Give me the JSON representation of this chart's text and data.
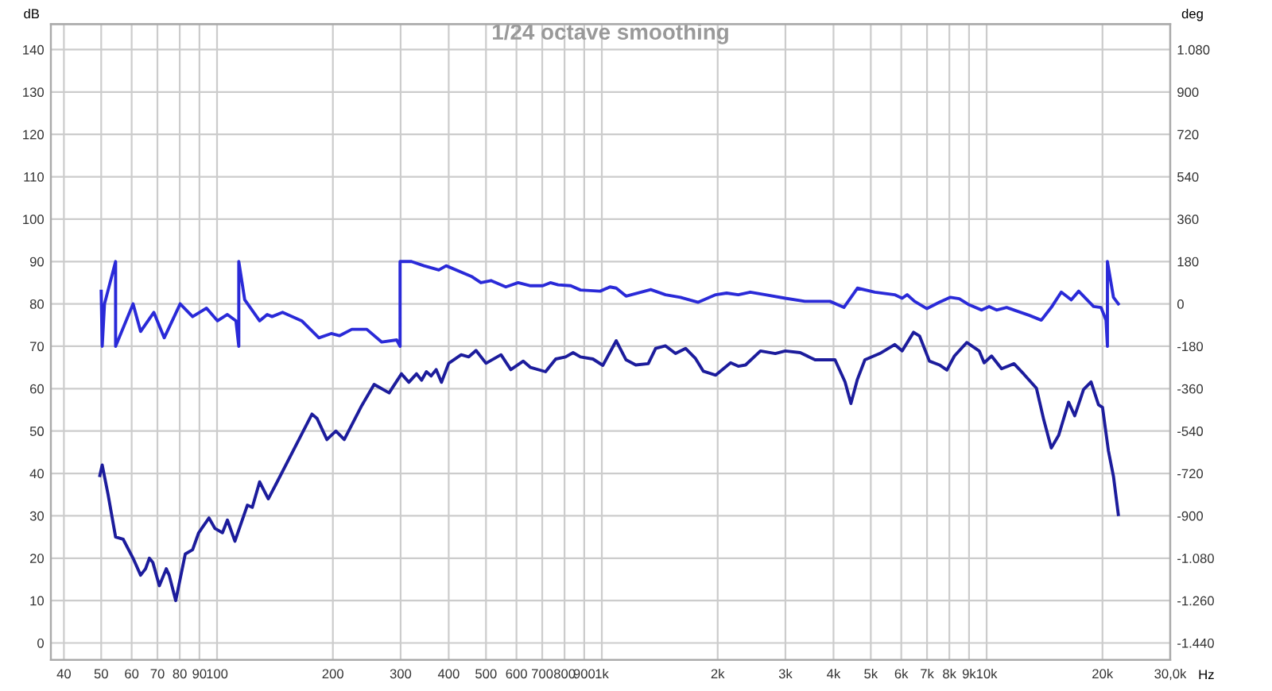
{
  "chart_data": {
    "type": "line",
    "title": "1/24 octave smoothing",
    "xlabel": "Hz",
    "ylabel": "dB",
    "y2label": "deg",
    "log": "x",
    "grid": true,
    "marker": "none",
    "line_style": "solid",
    "xlim": [
      37,
      30000
    ],
    "xticks": [
      40,
      50,
      60,
      70,
      80,
      90,
      100,
      200,
      300,
      400,
      500,
      600,
      700,
      800,
      900,
      {
        "value": 1000,
        "label": "1k"
      },
      {
        "value": 2000,
        "label": "2k"
      },
      {
        "value": 3000,
        "label": "3k"
      },
      {
        "value": 4000,
        "label": "4k"
      },
      {
        "value": 5000,
        "label": "5k"
      },
      {
        "value": 6000,
        "label": "6k"
      },
      {
        "value": 7000,
        "label": "7k"
      },
      {
        "value": 8000,
        "label": "8k"
      },
      {
        "value": 9000,
        "label": "9k"
      },
      {
        "value": 10000,
        "label": "10k"
      },
      {
        "value": 20000,
        "label": "20k"
      },
      {
        "value": 30000,
        "label": "30,0k"
      }
    ],
    "ylim": [
      -4,
      146
    ],
    "yticks": [
      0,
      10,
      20,
      30,
      40,
      50,
      60,
      70,
      80,
      90,
      100,
      110,
      120,
      130,
      140
    ],
    "y2lim": [
      -1512,
      1188
    ],
    "y2ticks": [
      {
        "value": -1440,
        "label": "-1.440"
      },
      {
        "value": -1260,
        "label": "-1.260"
      },
      {
        "value": -1080,
        "label": "-1.080"
      },
      -900,
      -720,
      -540,
      -360,
      -180,
      0,
      180,
      360,
      540,
      720,
      900,
      {
        "value": 1080,
        "label": "1.080"
      }
    ],
    "series": [
      {
        "color": "#1c1c9c",
        "x": [
          49.6,
          50.3,
          52.1,
          54.5,
          57,
          60.5,
          63.3,
          65.2,
          66.7,
          68.1,
          70.8,
          73.8,
          75.1,
          78.1,
          82.7,
          86.4,
          89.6,
          95.3,
          98.8,
          103.3,
          106.4,
          111.3,
          119.9,
          123.5,
          129,
          135.9,
          143.3,
          159,
          176.5,
          181.8,
          193,
          203.6,
          214.1,
          237.7,
          256,
          280,
          301.6,
          315,
          330,
          340,
          350,
          360,
          371,
          383,
          400,
          431,
          451,
          471,
          500,
          547,
          580,
          625,
          653,
          714,
          759,
          805,
          842,
          880,
          948,
          1006,
          1090,
          1156,
          1225,
          1320,
          1380,
          1464,
          1554,
          1650,
          1752,
          1836,
          1977,
          2161,
          2262,
          2363,
          2583,
          2824,
          2997,
          3278,
          3582,
          4036,
          4285,
          4439,
          4615,
          4826,
          5277,
          5767,
          6032,
          6458,
          6696,
          7100,
          7538,
          7884,
          8245,
          8877,
          9563,
          9851,
          10300,
          10935,
          11778,
          12500,
          13470,
          14080,
          14722,
          15390,
          16330,
          16940,
          17860,
          18680,
          19530,
          20000,
          20720,
          21360,
          21990
        ],
        "values": [
          39.5,
          42,
          35,
          25,
          24.5,
          20,
          16,
          17.5,
          20,
          19,
          13.5,
          17.5,
          16,
          10,
          21,
          22,
          26,
          29.5,
          27,
          26,
          29,
          24,
          32.5,
          32,
          38,
          34,
          38,
          46,
          54,
          53,
          48,
          50,
          48,
          56,
          61,
          59,
          63.5,
          61.5,
          63.5,
          62,
          64,
          63,
          64.5,
          61.5,
          66,
          68,
          67.5,
          69,
          66,
          68,
          64.5,
          66.5,
          65,
          64,
          67,
          67.5,
          68.5,
          67.5,
          67,
          65.5,
          71.3,
          66.8,
          65.6,
          65.9,
          69.5,
          70.1,
          68.3,
          69.5,
          67.1,
          64.1,
          63.2,
          66.1,
          65.3,
          65.6,
          68.9,
          68.3,
          68.9,
          68.5,
          66.8,
          66.8,
          61.6,
          56.5,
          62.2,
          66.8,
          68.3,
          70.4,
          68.9,
          73.3,
          72.4,
          66.5,
          65.6,
          64.4,
          67.7,
          70.9,
          68.9,
          66.1,
          67.7,
          64.7,
          65.9,
          63.4,
          60.1,
          52.6,
          46,
          49,
          56.8,
          53.6,
          59.8,
          61.6,
          56.2,
          55.6,
          45.4,
          39.3,
          30.3
        ]
      },
      {
        "color": "#2a2ad8",
        "axis": "y2",
        "x": [
          50,
          50.3,
          51,
          54.5,
          54.5,
          60.5,
          63.3,
          68.5,
          72.9,
          80.2,
          86.4,
          93.9,
          100.3,
          106.4,
          112,
          113.9,
          113.9,
          118,
          129,
          135,
          139,
          148,
          166,
          184,
          198,
          208,
          224,
          245,
          268,
          293,
          299,
          299,
          320,
          345,
          377,
          394,
          458,
          485,
          515,
          563,
          606,
          653,
          702,
          735,
          770,
          830,
          880,
          990,
          1050,
          1090,
          1156,
          1340,
          1464,
          1600,
          1780,
          1977,
          2110,
          2262,
          2431,
          2663,
          2997,
          3370,
          3917,
          4256,
          4615,
          5123,
          5767,
          6032,
          6213,
          6497,
          6996,
          7538,
          8050,
          8490,
          9010,
          9707,
          10150,
          10610,
          11270,
          11778,
          12880,
          13870,
          14722,
          15630,
          16590,
          17350,
          18960,
          19820,
          20430,
          20600,
          20600,
          21030,
          21360,
          21990
        ],
        "values": [
          54,
          -180,
          0,
          180,
          -180,
          0,
          -117,
          -36,
          -144,
          0,
          -54,
          -18,
          -72,
          -45,
          -72,
          -180,
          180,
          18,
          -72,
          -45,
          -54,
          -36,
          -72,
          -144,
          -126,
          -135,
          -108,
          -108,
          -162,
          -153,
          -180,
          180,
          180,
          162,
          144,
          162,
          117,
          90,
          99,
          72,
          90,
          77,
          77,
          90,
          81,
          77,
          59,
          54,
          72,
          67,
          33,
          61,
          39,
          28,
          7,
          39,
          46,
          39,
          50,
          39,
          24,
          11,
          11,
          -15,
          67,
          50,
          39,
          24,
          39,
          11,
          -20,
          7,
          28,
          22,
          -4,
          -26,
          -11,
          -26,
          -15,
          -26,
          -48,
          -69,
          -15,
          50,
          17,
          54,
          -11,
          -15,
          -69,
          -180,
          180,
          93,
          28,
          0
        ]
      }
    ]
  }
}
